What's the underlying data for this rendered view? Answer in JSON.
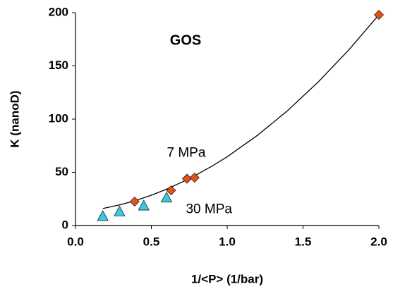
{
  "chart_data": {
    "type": "scatter",
    "title": "GOS",
    "xlabel": "1/<P> (1/bar)",
    "ylabel": "K (nanoD)",
    "annotations": [
      {
        "text": "7 MPa",
        "x": 0.73,
        "y": 68
      },
      {
        "text": "30 MPa",
        "x": 0.88,
        "y": 15
      }
    ],
    "xlim": [
      0,
      2
    ],
    "ylim": [
      0,
      200
    ],
    "xticks": [
      {
        "value": 0,
        "label": "0.0"
      },
      {
        "value": 0.5,
        "label": "0.5"
      },
      {
        "value": 1,
        "label": "1.0"
      },
      {
        "value": 1.5,
        "label": "1.5"
      },
      {
        "value": 2,
        "label": "2.0"
      }
    ],
    "yticks": [
      0,
      50,
      100,
      150,
      200
    ],
    "series": [
      {
        "marker": "line",
        "color": "#000000",
        "x": [
          0.18,
          0.3,
          0.4,
          0.5,
          0.6,
          0.75,
          0.9,
          1.0,
          1.2,
          1.4,
          1.6,
          1.8,
          2.0
        ],
        "values": [
          16.0,
          19.7,
          23.7,
          28.5,
          34.1,
          44.0,
          55.8,
          64.6,
          84.8,
          108.2,
          134.9,
          164.8,
          198.0
        ]
      },
      {
        "marker": "triangle",
        "color": "#33ccdd",
        "x": [
          0.18,
          0.29,
          0.45,
          0.6
        ],
        "values": [
          8.6,
          13,
          18.5,
          26
        ]
      },
      {
        "marker": "diamond",
        "color": "#e8501a",
        "x": [
          0.39,
          0.63,
          0.735,
          0.785,
          2.0
        ],
        "values": [
          22.5,
          33,
          44,
          45,
          198
        ]
      }
    ]
  }
}
